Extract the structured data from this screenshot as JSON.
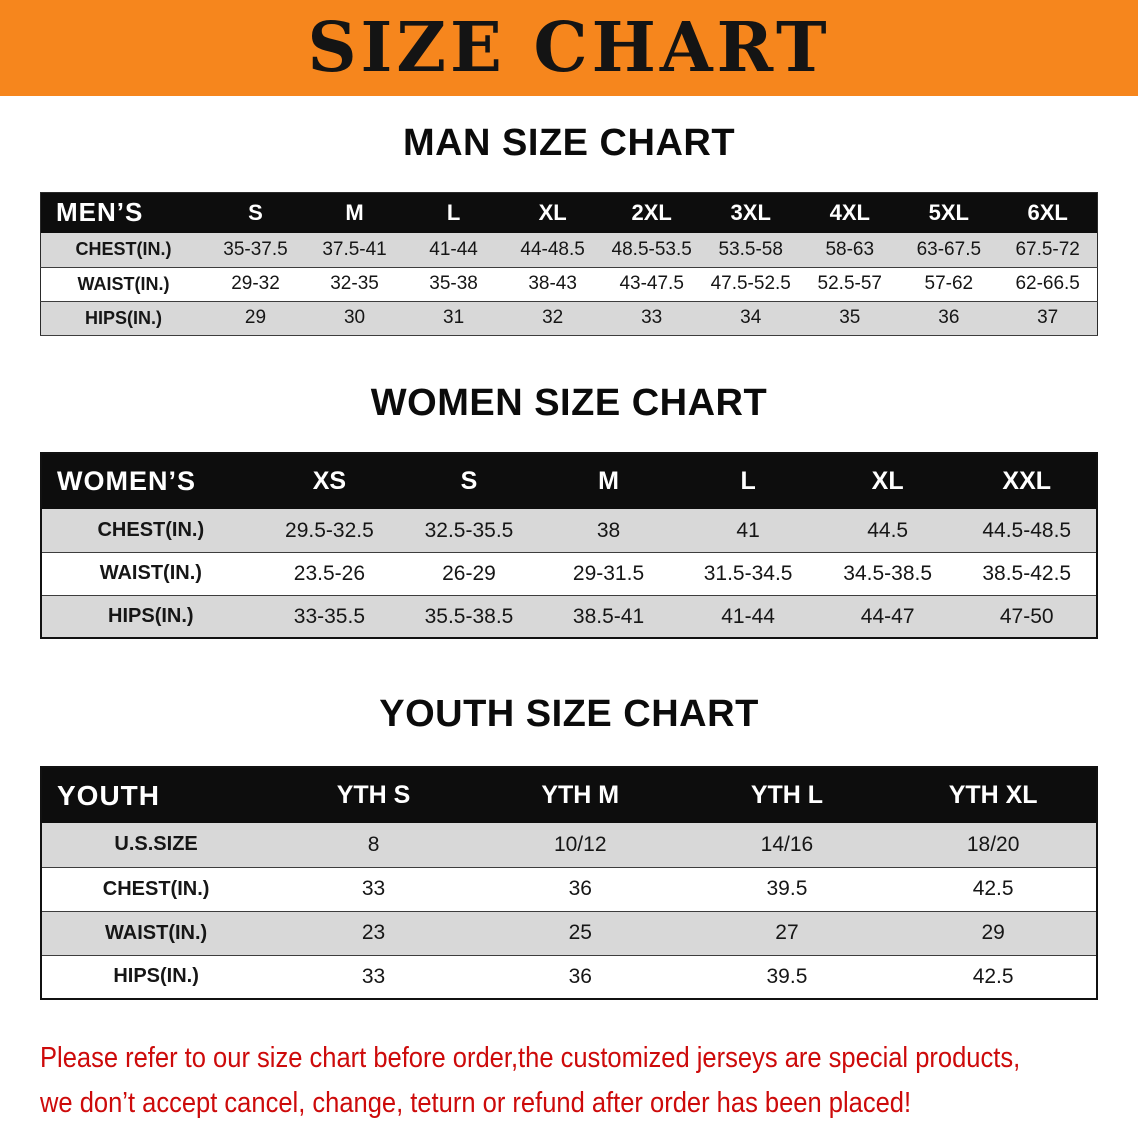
{
  "banner": {
    "title": "SIZE CHART",
    "bg_color": "#f6861d",
    "text_color": "#141414"
  },
  "tables": [
    {
      "heading": "MAN SIZE CHART",
      "corner": "MEN’S",
      "columns": [
        "S",
        "M",
        "L",
        "XL",
        "2XL",
        "3XL",
        "4XL",
        "5XL",
        "6XL"
      ],
      "rows": [
        {
          "label": "CHEST(IN.)",
          "values": [
            "35-37.5",
            "37.5-41",
            "41-44",
            "44-48.5",
            "48.5-53.5",
            "53.5-58",
            "58-63",
            "63-67.5",
            "67.5-72"
          ]
        },
        {
          "label": "WAIST(IN.)",
          "values": [
            "29-32",
            "32-35",
            "35-38",
            "38-43",
            "43-47.5",
            "47.5-52.5",
            "52.5-57",
            "57-62",
            "62-66.5"
          ]
        },
        {
          "label": "HIPS(IN.)",
          "values": [
            "29",
            "30",
            "31",
            "32",
            "33",
            "34",
            "35",
            "36",
            "37"
          ]
        }
      ]
    },
    {
      "heading": "WOMEN SIZE CHART",
      "corner": "WOMEN’S",
      "columns": [
        "XS",
        "S",
        "M",
        "L",
        "XL",
        "XXL"
      ],
      "rows": [
        {
          "label": "CHEST(IN.)",
          "values": [
            "29.5-32.5",
            "32.5-35.5",
            "38",
            "41",
            "44.5",
            "44.5-48.5"
          ]
        },
        {
          "label": "WAIST(IN.)",
          "values": [
            "23.5-26",
            "26-29",
            "29-31.5",
            "31.5-34.5",
            "34.5-38.5",
            "38.5-42.5"
          ]
        },
        {
          "label": "HIPS(IN.)",
          "values": [
            "33-35.5",
            "35.5-38.5",
            "38.5-41",
            "41-44",
            "44-47",
            "47-50"
          ]
        }
      ]
    },
    {
      "heading": "YOUTH SIZE CHART",
      "corner": "YOUTH",
      "columns": [
        "YTH S",
        "YTH M",
        "YTH L",
        "YTH XL"
      ],
      "rows": [
        {
          "label": "U.S.SIZE",
          "values": [
            "8",
            "10/12",
            "14/16",
            "18/20"
          ]
        },
        {
          "label": "CHEST(IN.)",
          "values": [
            "33",
            "36",
            "39.5",
            "42.5"
          ]
        },
        {
          "label": "WAIST(IN.)",
          "values": [
            "23",
            "25",
            "27",
            "29"
          ]
        },
        {
          "label": "HIPS(IN.)",
          "values": [
            "33",
            "36",
            "39.5",
            "42.5"
          ]
        }
      ]
    }
  ],
  "colors": {
    "banner_orange": "#f6861d",
    "table_header_black": "#0d0d0d",
    "row_gray": "#d8d8d8",
    "row_white": "#ffffff",
    "disclaimer_red": "#cd0a0a"
  },
  "footer": {
    "line1": "Please refer to our size chart before order,the customized jerseys are special products,",
    "line2": "we don’t accept cancel, change, teturn or refund after order has been placed!"
  }
}
